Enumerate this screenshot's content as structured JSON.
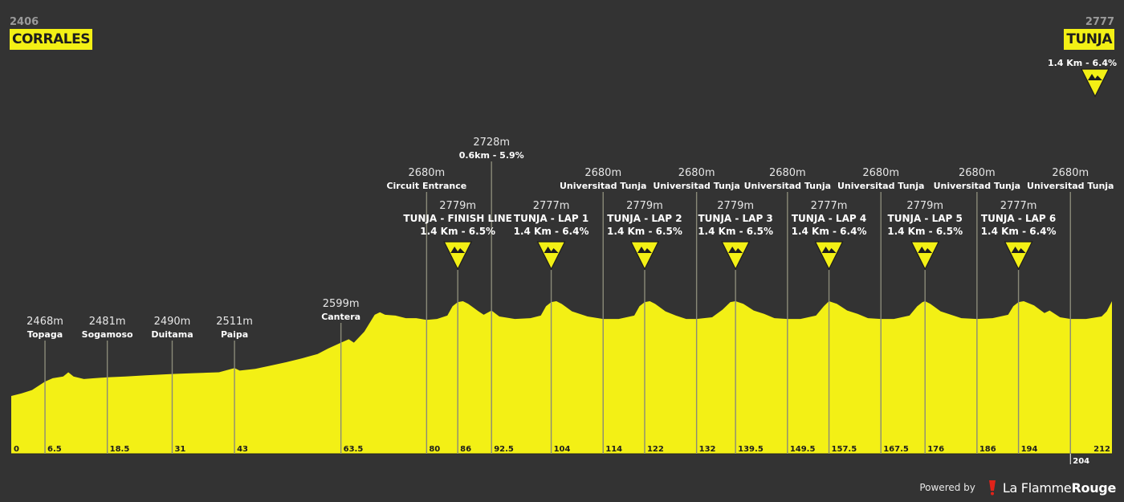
{
  "header": {
    "start_altitude": "2406",
    "start_name": "CORRALES",
    "end_altitude": "2777",
    "end_name": "TUNJA",
    "end_climb": "1.4 Km - 6.4%"
  },
  "footer": {
    "powered_by": "Powered by",
    "brand_part1": "La Flamme",
    "brand_part2": "Rouge"
  },
  "colors": {
    "background": "#333333",
    "profile": "#f3f015",
    "lines": "#bdbdbd"
  },
  "chart_data": {
    "type": "area",
    "xlabel": "",
    "ylabel": "",
    "xlim": [
      0,
      212
    ],
    "ylim": [
      2350,
      2850
    ],
    "x_ticks": [
      "0",
      "6.5",
      "18.5",
      "31",
      "43",
      "63.5",
      "80",
      "86",
      "92.5",
      "104",
      "114",
      "122",
      "132",
      "139.5",
      "149.5",
      "157.5",
      "167.5",
      "176",
      "186",
      "194",
      "204",
      "212"
    ],
    "profile": [
      [
        0,
        2406
      ],
      [
        2,
        2412
      ],
      [
        4,
        2420
      ],
      [
        6.5,
        2440
      ],
      [
        8,
        2448
      ],
      [
        10,
        2452
      ],
      [
        11,
        2462
      ],
      [
        12,
        2452
      ],
      [
        14,
        2446
      ],
      [
        16,
        2448
      ],
      [
        18.5,
        2450
      ],
      [
        22,
        2452
      ],
      [
        26,
        2455
      ],
      [
        31,
        2458
      ],
      [
        35,
        2460
      ],
      [
        40,
        2462
      ],
      [
        43,
        2472
      ],
      [
        44,
        2466
      ],
      [
        47,
        2470
      ],
      [
        50,
        2478
      ],
      [
        53,
        2486
      ],
      [
        56,
        2495
      ],
      [
        59,
        2505
      ],
      [
        61,
        2518
      ],
      [
        63.5,
        2532
      ],
      [
        65,
        2540
      ],
      [
        66,
        2532
      ],
      [
        68,
        2558
      ],
      [
        70,
        2598
      ],
      [
        71,
        2604
      ],
      [
        72,
        2598
      ],
      [
        74,
        2596
      ],
      [
        76,
        2590
      ],
      [
        78,
        2590
      ],
      [
        80,
        2586
      ],
      [
        82,
        2588
      ],
      [
        84,
        2596
      ],
      [
        85,
        2618
      ],
      [
        86,
        2628
      ],
      [
        87,
        2630
      ],
      [
        88,
        2624
      ],
      [
        90,
        2606
      ],
      [
        91,
        2598
      ],
      [
        92.5,
        2608
      ],
      [
        94,
        2594
      ],
      [
        97,
        2588
      ],
      [
        100,
        2590
      ],
      [
        102,
        2596
      ],
      [
        103,
        2618
      ],
      [
        104,
        2628
      ],
      [
        105,
        2630
      ],
      [
        106,
        2624
      ],
      [
        108,
        2606
      ],
      [
        111,
        2594
      ],
      [
        114,
        2588
      ],
      [
        117,
        2588
      ],
      [
        120,
        2596
      ],
      [
        121,
        2618
      ],
      [
        122,
        2628
      ],
      [
        123,
        2630
      ],
      [
        124,
        2624
      ],
      [
        126,
        2606
      ],
      [
        128,
        2596
      ],
      [
        130,
        2588
      ],
      [
        132,
        2588
      ],
      [
        135,
        2592
      ],
      [
        137,
        2610
      ],
      [
        138.5,
        2628
      ],
      [
        139.5,
        2630
      ],
      [
        141,
        2624
      ],
      [
        143,
        2608
      ],
      [
        145,
        2600
      ],
      [
        147,
        2590
      ],
      [
        149.5,
        2588
      ],
      [
        152,
        2588
      ],
      [
        155,
        2596
      ],
      [
        156.5,
        2618
      ],
      [
        157.5,
        2630
      ],
      [
        159,
        2624
      ],
      [
        161,
        2608
      ],
      [
        163,
        2600
      ],
      [
        165,
        2590
      ],
      [
        167.5,
        2588
      ],
      [
        170,
        2588
      ],
      [
        173,
        2596
      ],
      [
        174.5,
        2618
      ],
      [
        175.5,
        2628
      ],
      [
        176,
        2630
      ],
      [
        177,
        2624
      ],
      [
        179,
        2606
      ],
      [
        181,
        2598
      ],
      [
        183,
        2590
      ],
      [
        186,
        2588
      ],
      [
        189,
        2590
      ],
      [
        192,
        2598
      ],
      [
        193,
        2618
      ],
      [
        194,
        2628
      ],
      [
        195,
        2630
      ],
      [
        197,
        2620
      ],
      [
        199,
        2602
      ],
      [
        200,
        2608
      ],
      [
        202,
        2592
      ],
      [
        204,
        2588
      ],
      [
        207,
        2588
      ],
      [
        210,
        2594
      ],
      [
        211,
        2606
      ],
      [
        212,
        2630
      ]
    ],
    "markers": [
      {
        "km": 6.5,
        "altitude": "2468m",
        "name": "Topaga",
        "tier": "low"
      },
      {
        "km": 18.5,
        "altitude": "2481m",
        "name": "Sogamoso",
        "tier": "low"
      },
      {
        "km": 31,
        "altitude": "2490m",
        "name": "Duitama",
        "tier": "low"
      },
      {
        "km": 43,
        "altitude": "2511m",
        "name": "Paipa",
        "tier": "low"
      },
      {
        "km": 63.5,
        "altitude": "2599m",
        "name": "Cantera",
        "tier": "mid"
      },
      {
        "km": 80,
        "altitude": "2680m",
        "name": "Circuit Entrance",
        "tier": "upper"
      },
      {
        "km": 92.5,
        "altitude": "2728m",
        "name": "0.6km - 5.9%",
        "tier": "top"
      },
      {
        "km": 114,
        "altitude": "2680m",
        "name": "Universitad Tunja",
        "tier": "upper"
      },
      {
        "km": 132,
        "altitude": "2680m",
        "name": "Universitad Tunja",
        "tier": "upper"
      },
      {
        "km": 149.5,
        "altitude": "2680m",
        "name": "Universitad Tunja",
        "tier": "upper"
      },
      {
        "km": 167.5,
        "altitude": "2680m",
        "name": "Universitad Tunja",
        "tier": "upper"
      },
      {
        "km": 186,
        "altitude": "2680m",
        "name": "Universitad Tunja",
        "tier": "upper"
      },
      {
        "km": 204,
        "altitude": "2680m",
        "name": "Universitad Tunja",
        "tier": "upper"
      }
    ],
    "climbs": [
      {
        "km": 86,
        "altitude": "2779m",
        "name": "TUNJA - FINISH LINE",
        "climb": "1.4 Km - 6.5%"
      },
      {
        "km": 104,
        "altitude": "2777m",
        "name": "TUNJA - LAP 1",
        "climb": "1.4 Km - 6.4%"
      },
      {
        "km": 122,
        "altitude": "2779m",
        "name": "TUNJA - LAP 2",
        "climb": "1.4 Km - 6.5%"
      },
      {
        "km": 139.5,
        "altitude": "2779m",
        "name": "TUNJA - LAP 3",
        "climb": "1.4 Km - 6.5%"
      },
      {
        "km": 157.5,
        "altitude": "2777m",
        "name": "TUNJA - LAP 4",
        "climb": "1.4 Km - 6.4%"
      },
      {
        "km": 176,
        "altitude": "2779m",
        "name": "TUNJA - LAP 5",
        "climb": "1.4 Km - 6.5%"
      },
      {
        "km": 194,
        "altitude": "2777m",
        "name": "TUNJA - LAP 6",
        "climb": "1.4 Km - 6.4%"
      }
    ]
  }
}
